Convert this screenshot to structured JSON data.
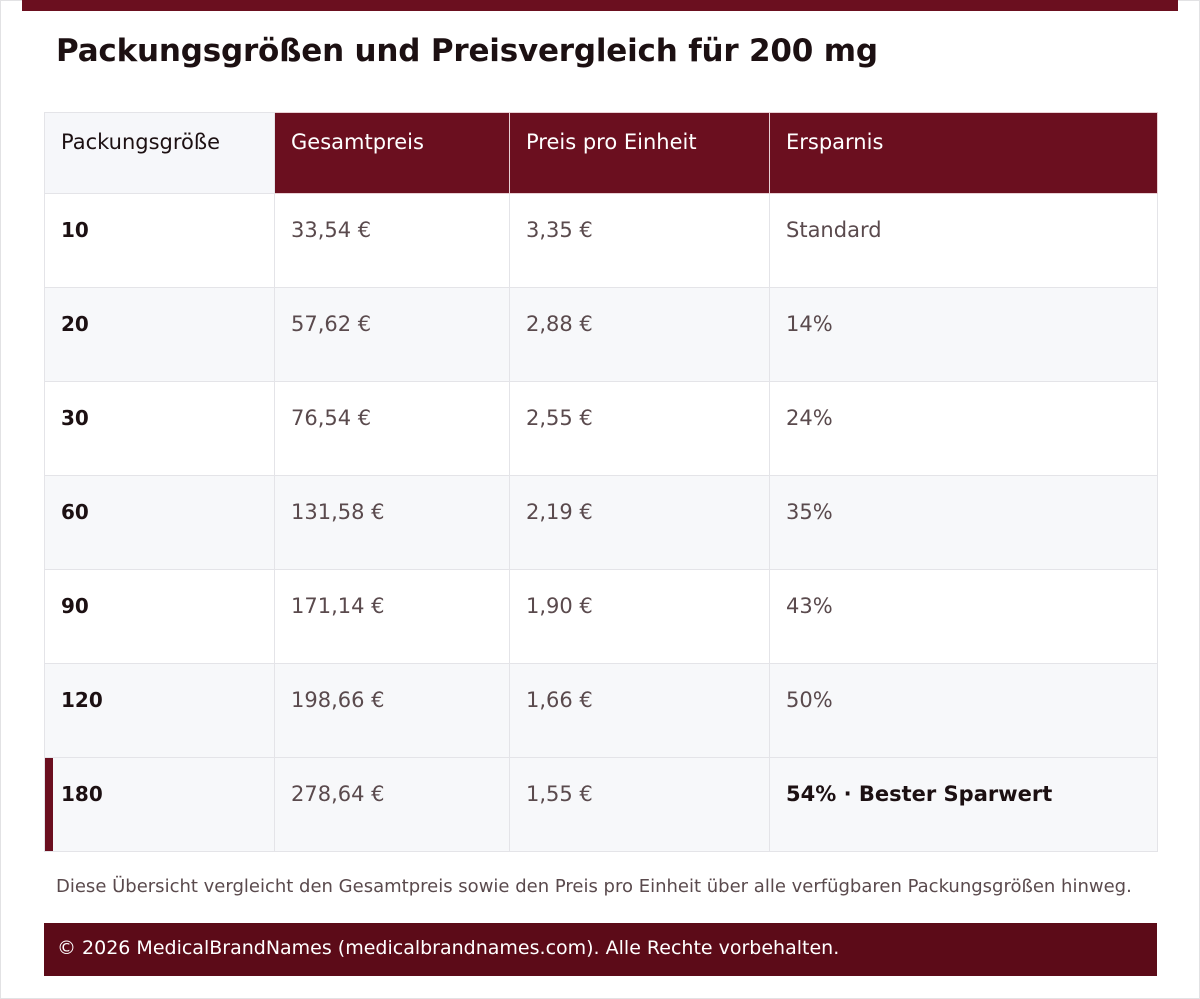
{
  "title": "Packungsgrößen und Preisvergleich für 200 mg",
  "colors": {
    "accent": "#6b0f1f",
    "footer": "#5c0b18",
    "row_alt": "#f7f8fa"
  },
  "table": {
    "headers": [
      "Packungsgröße",
      "Gesamtpreis",
      "Preis pro Einheit",
      "Ersparnis"
    ],
    "rows": [
      [
        "10",
        "33,54 €",
        "3,35 €",
        "Standard"
      ],
      [
        "20",
        "57,62 €",
        "2,88 €",
        "14%"
      ],
      [
        "30",
        "76,54 €",
        "2,55 €",
        "24%"
      ],
      [
        "60",
        "131,58 €",
        "2,19 €",
        "35%"
      ],
      [
        "90",
        "171,14 €",
        "1,90 €",
        "43%"
      ],
      [
        "120",
        "198,66 €",
        "1,66 €",
        "50%"
      ],
      [
        "180",
        "278,64 €",
        "1,55 €",
        "54% · Bester Sparwert"
      ]
    ]
  },
  "note": "Diese Übersicht vergleicht den Gesamtpreis sowie den Preis pro Einheit über alle verfügbaren Packungsgrößen hinweg.",
  "footer": "© 2026 MedicalBrandNames (medicalbrandnames.com). Alle Rechte vorbehalten."
}
